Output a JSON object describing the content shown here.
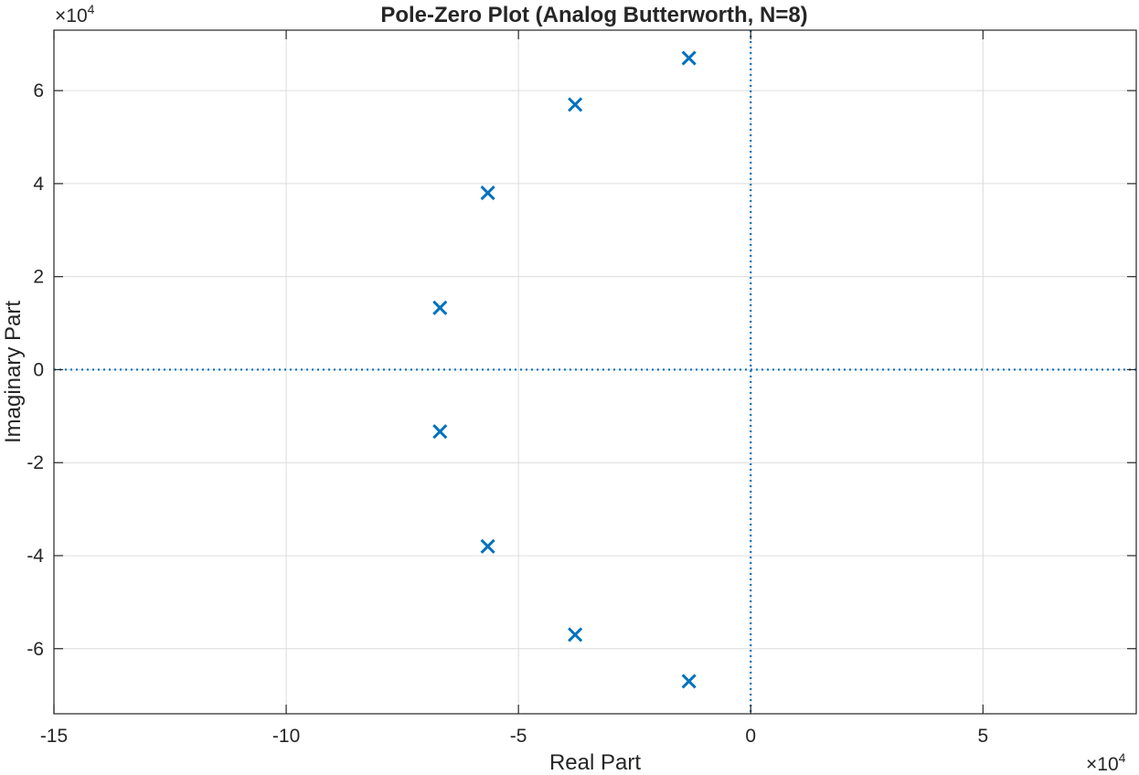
{
  "chart_data": {
    "type": "scatter",
    "title": "Pole-Zero Plot (Analog Butterworth, N=8)",
    "xlabel": "Real Part",
    "ylabel": "Imaginary Part",
    "x_exponent_label": "×10",
    "x_exponent_power": "4",
    "y_exponent_label": "×10",
    "y_exponent_power": "4",
    "xlim": [
      -150000,
      83000
    ],
    "ylim": [
      -74000,
      73000
    ],
    "xticks": [
      -150000,
      -100000,
      -50000,
      0,
      50000
    ],
    "xtick_labels": [
      "-15",
      "-10",
      "-5",
      "0",
      "5"
    ],
    "yticks": [
      -60000,
      -40000,
      -20000,
      0,
      20000,
      40000,
      60000
    ],
    "ytick_labels": [
      "-6",
      "-4",
      "-2",
      "0",
      "2",
      "4",
      "6"
    ],
    "grid": true,
    "marker": "x",
    "color": "#0072BD",
    "reference_lines": {
      "x": 0,
      "y": 0,
      "style": "dotted"
    },
    "series": [
      {
        "points": [
          {
            "x": -13300,
            "y": 67000
          },
          {
            "x": -37800,
            "y": 57000
          },
          {
            "x": -56600,
            "y": 38000
          },
          {
            "x": -66900,
            "y": 13300
          },
          {
            "x": -66900,
            "y": -13300
          },
          {
            "x": -56600,
            "y": -38000
          },
          {
            "x": -37800,
            "y": -57000
          },
          {
            "x": -13300,
            "y": -67000
          }
        ]
      }
    ]
  }
}
